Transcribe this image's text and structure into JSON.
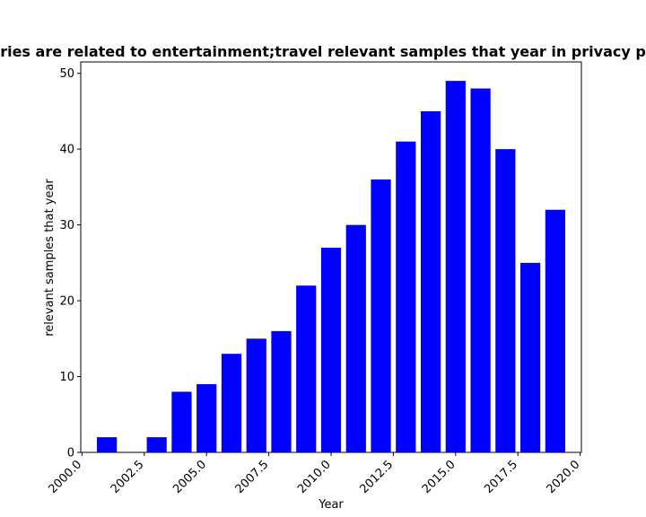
{
  "chart_data": {
    "type": "bar",
    "title": "ries are related to entertainment;travel relevant samples that year in privacy p",
    "xlabel": "Year",
    "ylabel": "relevant samples that year",
    "x": [
      2001,
      2003,
      2004,
      2005,
      2006,
      2007,
      2008,
      2009,
      2010,
      2011,
      2012,
      2013,
      2014,
      2015,
      2016,
      2017,
      2018,
      2019
    ],
    "values": [
      2,
      2,
      8,
      9,
      13,
      15,
      16,
      22,
      27,
      30,
      36,
      41,
      45,
      49,
      48,
      40,
      25,
      32
    ],
    "xlim": [
      1999.95,
      2020.05
    ],
    "ylim": [
      0,
      51.5
    ],
    "xticks": [
      "2000.0",
      "2002.5",
      "2005.0",
      "2007.5",
      "2010.0",
      "2012.5",
      "2015.0",
      "2017.5",
      "2020.0"
    ],
    "yticks": [
      "0",
      "10",
      "20",
      "30",
      "40",
      "50"
    ],
    "bar_color": "#0000ff",
    "grid": false,
    "legend": "none"
  }
}
